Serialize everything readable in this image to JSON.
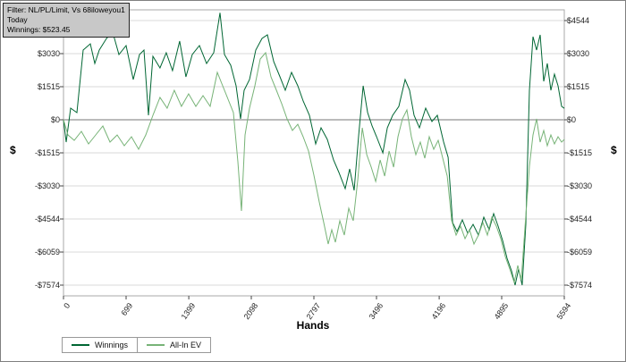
{
  "info_box": {
    "line1": "Filter: NL/PL/Limit, Vs 68iloweyou1",
    "line2": "Today",
    "line3": "Winnings: $523.45"
  },
  "axes": {
    "y_title_left": "$",
    "y_title_right": "$",
    "x_title": "Hands",
    "y_ticks": [
      "$4544",
      "$3030",
      "$1515",
      "$0",
      "-$1515",
      "-$3030",
      "-$4544",
      "-$6059",
      "-$7574"
    ],
    "x_ticks": [
      "0",
      "699",
      "1399",
      "2098",
      "2797",
      "3496",
      "4196",
      "4895",
      "5594"
    ]
  },
  "legend": [
    {
      "label": "Winnings",
      "color": "#006633"
    },
    {
      "label": "All-In EV",
      "color": "#77b377"
    }
  ],
  "colors": {
    "winnings_line": "#006633",
    "all_in_ev_line": "#77b377",
    "gridline": "#d8d8d8",
    "zero_line": "#777777",
    "plot_border": "#aaaaaa",
    "info_box_bg": "#c8c8c8"
  },
  "chart_data": {
    "type": "line",
    "title": "",
    "xlabel": "Hands",
    "ylabel": "$",
    "xlim": [
      0,
      5594
    ],
    "ylim": [
      -7574,
      4544
    ],
    "x_ticks": [
      0,
      699,
      1399,
      2098,
      2797,
      3496,
      4196,
      4895,
      5594
    ],
    "y_ticks": [
      4544,
      3030,
      1515,
      0,
      -1515,
      -3030,
      -4544,
      -6059,
      -7574
    ],
    "grid": true,
    "legend_position": "bottom-left",
    "final_winnings": 523.45,
    "series": [
      {
        "name": "Winnings",
        "color": "#006633",
        "points": [
          [
            0,
            0
          ],
          [
            30,
            -1023
          ],
          [
            80,
            532
          ],
          [
            150,
            327
          ],
          [
            220,
            3193
          ],
          [
            300,
            3480
          ],
          [
            350,
            2579
          ],
          [
            400,
            3193
          ],
          [
            480,
            3725
          ],
          [
            549,
            4012
          ],
          [
            619,
            2988
          ],
          [
            699,
            3398
          ],
          [
            779,
            1842
          ],
          [
            849,
            2988
          ],
          [
            899,
            3193
          ],
          [
            949,
            205
          ],
          [
            999,
            2906
          ],
          [
            1078,
            2374
          ],
          [
            1148,
            3070
          ],
          [
            1218,
            2251
          ],
          [
            1298,
            3602
          ],
          [
            1368,
            1965
          ],
          [
            1438,
            2988
          ],
          [
            1518,
            3398
          ],
          [
            1598,
            2579
          ],
          [
            1678,
            3070
          ],
          [
            1748,
            4900
          ],
          [
            1798,
            2988
          ],
          [
            1868,
            2497
          ],
          [
            1928,
            1556
          ],
          [
            1978,
            41
          ],
          [
            2018,
            1351
          ],
          [
            2078,
            1842
          ],
          [
            2148,
            3193
          ],
          [
            2218,
            3725
          ],
          [
            2278,
            3889
          ],
          [
            2348,
            2661
          ],
          [
            2418,
            1965
          ],
          [
            2477,
            1351
          ],
          [
            2547,
            2170
          ],
          [
            2617,
            1556
          ],
          [
            2677,
            860
          ],
          [
            2747,
            205
          ],
          [
            2817,
            -1105
          ],
          [
            2877,
            -368
          ],
          [
            2947,
            -901
          ],
          [
            3017,
            -1842
          ],
          [
            3077,
            -2415
          ],
          [
            3147,
            -3152
          ],
          [
            3197,
            -2251
          ],
          [
            3247,
            -3234
          ],
          [
            3297,
            -696
          ],
          [
            3347,
            1556
          ],
          [
            3397,
            327
          ],
          [
            3447,
            -287
          ],
          [
            3497,
            -778
          ],
          [
            3567,
            -1515
          ],
          [
            3617,
            -368
          ],
          [
            3677,
            205
          ],
          [
            3746,
            614
          ],
          [
            3816,
            1842
          ],
          [
            3866,
            1351
          ],
          [
            3916,
            205
          ],
          [
            3976,
            -368
          ],
          [
            4046,
            532
          ],
          [
            4116,
            -82
          ],
          [
            4176,
            205
          ],
          [
            4246,
            -1023
          ],
          [
            4296,
            -1719
          ],
          [
            4346,
            -4708
          ],
          [
            4395,
            -5117
          ],
          [
            4455,
            -4585
          ],
          [
            4515,
            -5199
          ],
          [
            4575,
            -4790
          ],
          [
            4635,
            -5281
          ],
          [
            4695,
            -4462
          ],
          [
            4755,
            -5035
          ],
          [
            4805,
            -4298
          ],
          [
            4855,
            -4871
          ],
          [
            4905,
            -5526
          ],
          [
            4955,
            -6345
          ],
          [
            5005,
            -6918
          ],
          [
            5045,
            -7573
          ],
          [
            5084,
            -6836
          ],
          [
            5124,
            -7573
          ],
          [
            5164,
            -4790
          ],
          [
            5204,
            1351
          ],
          [
            5244,
            3807
          ],
          [
            5284,
            3193
          ],
          [
            5324,
            3889
          ],
          [
            5364,
            1760
          ],
          [
            5404,
            2579
          ],
          [
            5444,
            1351
          ],
          [
            5484,
            2088
          ],
          [
            5524,
            1556
          ],
          [
            5564,
            614
          ],
          [
            5594,
            523
          ]
        ]
      },
      {
        "name": "All-In EV",
        "color": "#77b377",
        "points": [
          [
            0,
            0
          ],
          [
            50,
            -696
          ],
          [
            120,
            -941
          ],
          [
            200,
            -532
          ],
          [
            280,
            -1105
          ],
          [
            360,
            -696
          ],
          [
            440,
            -287
          ],
          [
            519,
            -1023
          ],
          [
            599,
            -696
          ],
          [
            679,
            -1187
          ],
          [
            759,
            -778
          ],
          [
            839,
            -1351
          ],
          [
            919,
            -696
          ],
          [
            999,
            205
          ],
          [
            1078,
            1023
          ],
          [
            1158,
            532
          ],
          [
            1238,
            1351
          ],
          [
            1318,
            614
          ],
          [
            1398,
            1187
          ],
          [
            1478,
            614
          ],
          [
            1558,
            1105
          ],
          [
            1638,
            614
          ],
          [
            1718,
            2170
          ],
          [
            1778,
            1556
          ],
          [
            1838,
            941
          ],
          [
            1898,
            327
          ],
          [
            1948,
            -1924
          ],
          [
            1988,
            -4175
          ],
          [
            2028,
            -696
          ],
          [
            2078,
            532
          ],
          [
            2138,
            1556
          ],
          [
            2198,
            2783
          ],
          [
            2258,
            3070
          ],
          [
            2318,
            1965
          ],
          [
            2378,
            1351
          ],
          [
            2437,
            737
          ],
          [
            2497,
            41
          ],
          [
            2557,
            -491
          ],
          [
            2617,
            -205
          ],
          [
            2677,
            -778
          ],
          [
            2737,
            -1433
          ],
          [
            2797,
            -2538
          ],
          [
            2857,
            -3766
          ],
          [
            2907,
            -4708
          ],
          [
            2957,
            -5690
          ],
          [
            2997,
            -5035
          ],
          [
            3037,
            -5608
          ],
          [
            3087,
            -4626
          ],
          [
            3137,
            -5281
          ],
          [
            3187,
            -4053
          ],
          [
            3237,
            -4626
          ],
          [
            3287,
            -2743
          ],
          [
            3337,
            -368
          ],
          [
            3387,
            -1597
          ],
          [
            3437,
            -2170
          ],
          [
            3487,
            -2825
          ],
          [
            3537,
            -1842
          ],
          [
            3587,
            -2579
          ],
          [
            3637,
            -1433
          ],
          [
            3687,
            -2170
          ],
          [
            3736,
            -778
          ],
          [
            3786,
            41
          ],
          [
            3836,
            450
          ],
          [
            3886,
            -778
          ],
          [
            3936,
            -1597
          ],
          [
            3986,
            -1023
          ],
          [
            4036,
            -1760
          ],
          [
            4086,
            -778
          ],
          [
            4136,
            -1351
          ],
          [
            4186,
            -941
          ],
          [
            4236,
            -1760
          ],
          [
            4286,
            -2579
          ],
          [
            4336,
            -4626
          ],
          [
            4385,
            -5281
          ],
          [
            4435,
            -4871
          ],
          [
            4485,
            -5444
          ],
          [
            4535,
            -5035
          ],
          [
            4585,
            -5690
          ],
          [
            4635,
            -5281
          ],
          [
            4685,
            -4708
          ],
          [
            4735,
            -5281
          ],
          [
            4785,
            -4462
          ],
          [
            4835,
            -4871
          ],
          [
            4885,
            -5444
          ],
          [
            4935,
            -6263
          ],
          [
            4985,
            -6836
          ],
          [
            5035,
            -7450
          ],
          [
            5075,
            -6672
          ],
          [
            5114,
            -7327
          ],
          [
            5164,
            -4380
          ],
          [
            5204,
            -2129
          ],
          [
            5244,
            -696
          ],
          [
            5284,
            41
          ],
          [
            5324,
            -1023
          ],
          [
            5364,
            -491
          ],
          [
            5404,
            -1187
          ],
          [
            5444,
            -696
          ],
          [
            5484,
            -1105
          ],
          [
            5524,
            -778
          ],
          [
            5564,
            -1023
          ],
          [
            5594,
            -901
          ]
        ]
      }
    ]
  }
}
